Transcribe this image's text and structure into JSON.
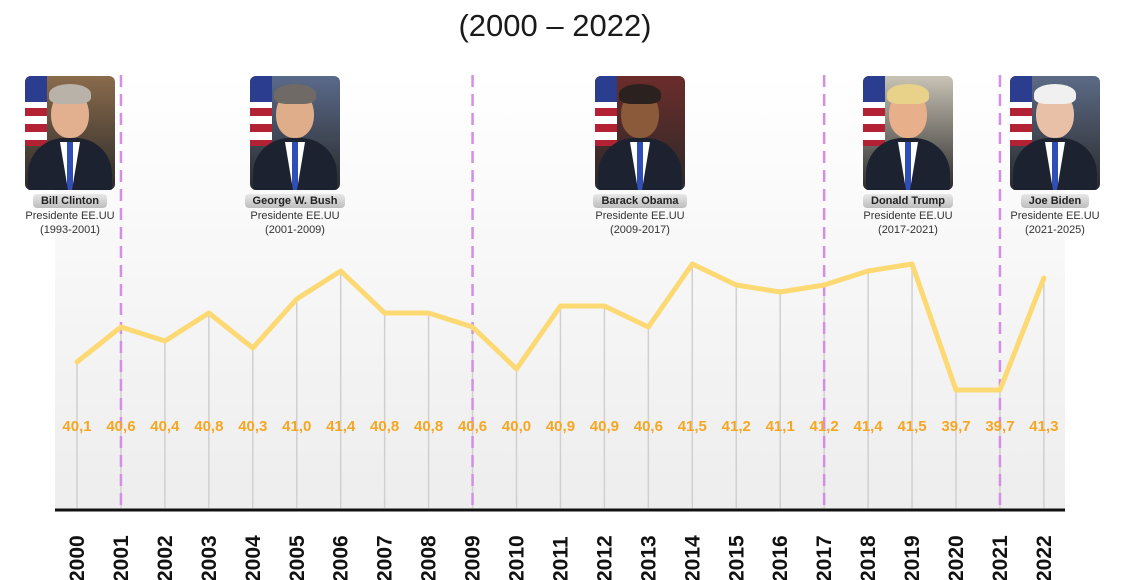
{
  "chart_data": {
    "type": "line",
    "title": "(2000 – 2022)",
    "categories": [
      "2000",
      "2001",
      "2002",
      "2003",
      "2004",
      "2005",
      "2006",
      "2007",
      "2008",
      "2009",
      "2010",
      "2011",
      "2012",
      "2013",
      "2014",
      "2015",
      "2016",
      "2017",
      "2018",
      "2019",
      "2020",
      "2021",
      "2022"
    ],
    "series": [
      {
        "values": [
          40.1,
          40.6,
          40.4,
          40.8,
          40.3,
          41.0,
          41.4,
          40.8,
          40.8,
          40.6,
          40.0,
          40.9,
          40.9,
          40.6,
          41.5,
          41.2,
          41.1,
          41.2,
          41.4,
          41.5,
          39.7,
          39.7,
          41.3
        ]
      }
    ],
    "data_labels": [
      "40,1",
      "40,6",
      "40,4",
      "40,8",
      "40,3",
      "41,0",
      "41,4",
      "40,8",
      "40,8",
      "40,6",
      "40,0",
      "40,9",
      "40,9",
      "40,6",
      "41,5",
      "41,2",
      "41,1",
      "41,2",
      "41,4",
      "41,5",
      "39,7",
      "39,7",
      "41,3"
    ],
    "term_boundaries": [
      "2001",
      "2009",
      "2017",
      "2021"
    ],
    "grid": "vertical",
    "colors": {
      "line": "#fcd973",
      "labels": "#f5a623",
      "boundary": "#d58ee6",
      "gridline": "#d0d0d0",
      "axis": "#111111"
    }
  },
  "presidents": [
    {
      "name": "Bill Clinton",
      "role": "Presidente EE.UU",
      "term": "(1993-2001)",
      "anchor_year": "2000"
    },
    {
      "name": "George W. Bush",
      "role": "Presidente EE.UU",
      "term": "(2001-2009)",
      "anchor_year": "2005"
    },
    {
      "name": "Barack Obama",
      "role": "Presidente EE.UU",
      "term": "(2009-2017)",
      "anchor_year": "2013"
    },
    {
      "name": "Donald Trump",
      "role": "Presidente EE.UU",
      "term": "(2017-2021)",
      "anchor_year": "2019"
    },
    {
      "name": "Joe Biden",
      "role": "Presidente EE.UU",
      "term": "(2021-2025)",
      "anchor_year": "2022"
    }
  ]
}
